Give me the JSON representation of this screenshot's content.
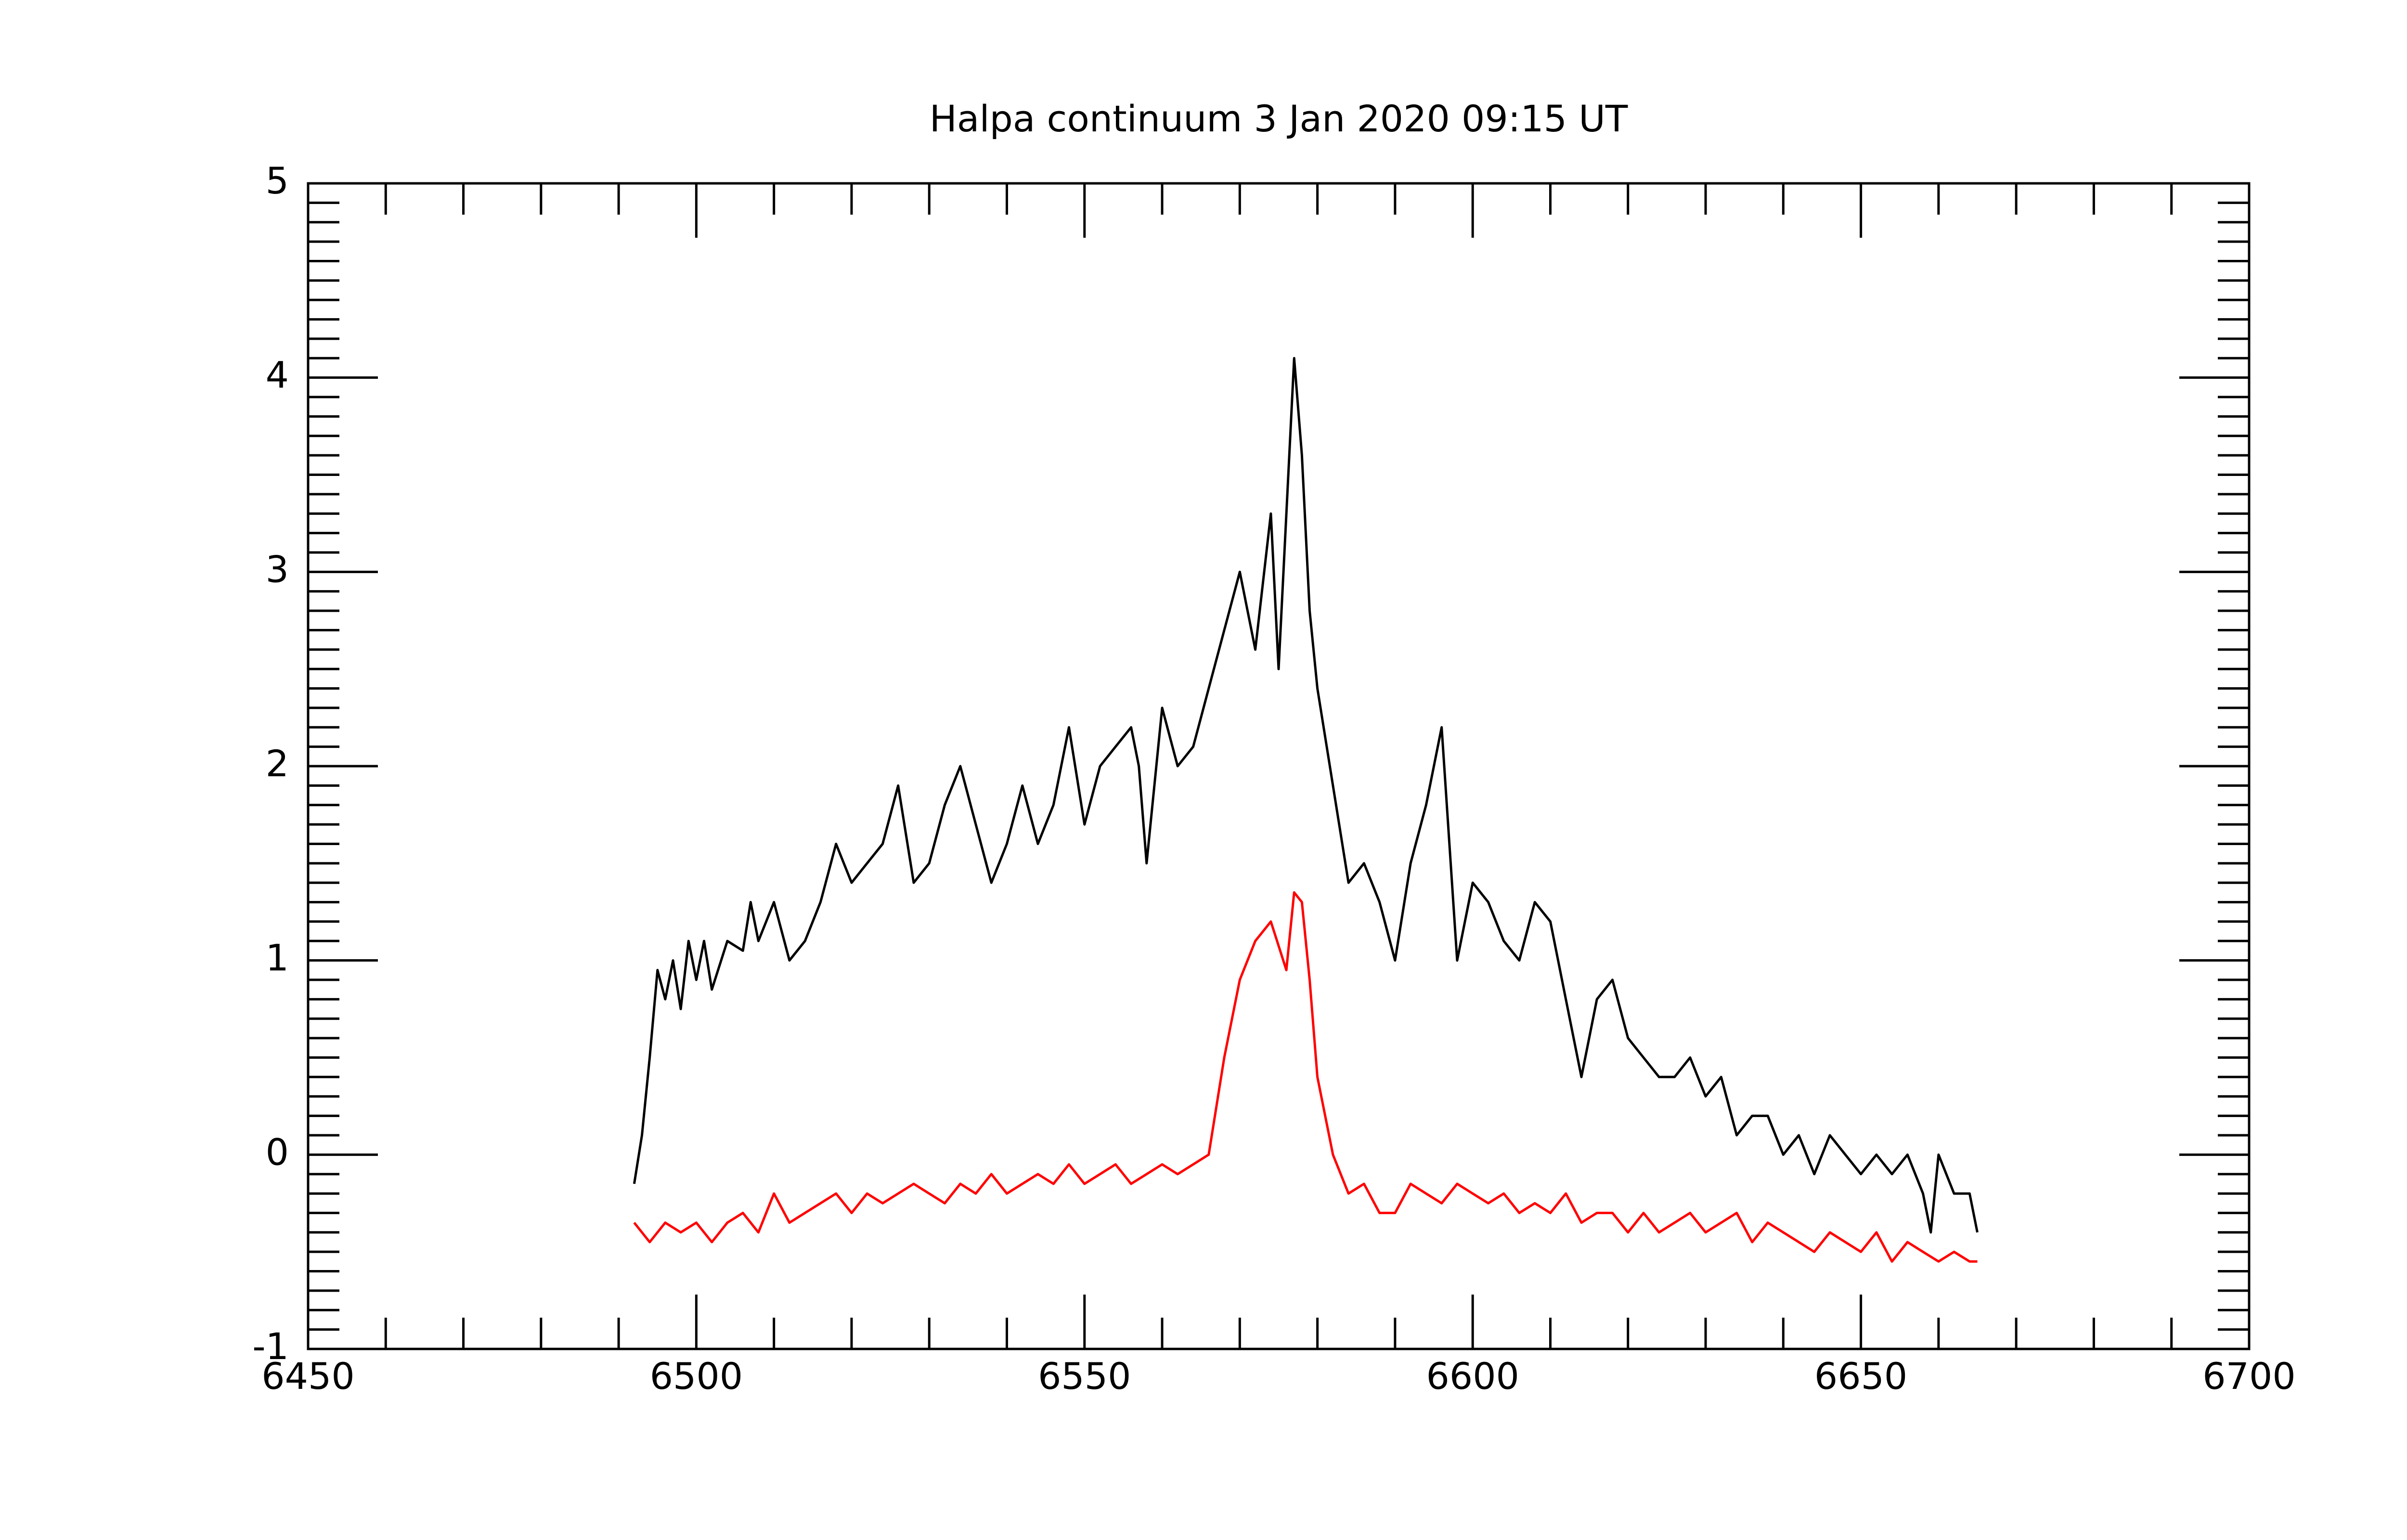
{
  "chart_data": {
    "type": "line",
    "title": "Halpa continuum 3 Jan 2020 09:15 UT",
    "xlim": [
      6450,
      6700
    ],
    "ylim": [
      -1,
      5
    ],
    "xticks": [
      6450,
      6500,
      6550,
      6600,
      6650,
      6700
    ],
    "yticks": [
      -1,
      0,
      1,
      2,
      3,
      4,
      5
    ],
    "xminorticks": [
      6460,
      6470,
      6480,
      6490,
      6510,
      6520,
      6530,
      6540,
      6560,
      6570,
      6580,
      6590,
      6610,
      6620,
      6630,
      6640,
      6660,
      6670,
      6680,
      6690
    ],
    "yminorticks": [
      -0.8,
      -0.6,
      -0.4,
      -0.2,
      0.2,
      0.4,
      0.6,
      0.8,
      1.2,
      1.4,
      1.6,
      1.8,
      2.2,
      2.4,
      2.6,
      2.8,
      3.2,
      3.4,
      3.6,
      3.8,
      4.2,
      4.4,
      4.6,
      4.8,
      -0.9,
      -0.7,
      -0.5,
      -0.3,
      -0.1,
      0.1,
      0.3,
      0.5,
      0.7,
      0.9,
      1.1,
      1.3,
      1.5,
      1.7,
      1.9,
      2.1,
      2.3,
      2.5,
      2.7,
      2.9,
      3.1,
      3.3,
      3.5,
      3.7,
      3.9,
      4.1,
      4.3,
      4.5,
      4.7,
      4.9
    ],
    "series": [
      {
        "color": "#000000",
        "x": [
          6492,
          6493,
          6494,
          6495,
          6496,
          6497,
          6498,
          6499,
          6500,
          6501,
          6502,
          6504,
          6506,
          6507,
          6508,
          6510,
          6512,
          6514,
          6516,
          6518,
          6520,
          6522,
          6524,
          6526,
          6528,
          6530,
          6532,
          6534,
          6536,
          6538,
          6540,
          6542,
          6544,
          6546,
          6548,
          6550,
          6552,
          6554,
          6556,
          6557,
          6558,
          6560,
          6562,
          6564,
          6566,
          6568,
          6570,
          6572,
          6574,
          6575,
          6577,
          6578,
          6579,
          6580,
          6582,
          6584,
          6586,
          6588,
          6590,
          6592,
          6594,
          6596,
          6598,
          6600,
          6602,
          6604,
          6606,
          6608,
          6610,
          6612,
          6614,
          6616,
          6618,
          6620,
          6622,
          6624,
          6626,
          6628,
          6630,
          6632,
          6634,
          6636,
          6638,
          6640,
          6642,
          6644,
          6646,
          6648,
          6650,
          6652,
          6654,
          6656,
          6658,
          6659,
          6660,
          6662,
          6664,
          6665
        ],
        "values": [
          -0.15,
          0.1,
          0.5,
          0.95,
          0.8,
          1.0,
          0.75,
          1.1,
          0.9,
          1.1,
          0.85,
          1.1,
          1.05,
          1.3,
          1.1,
          1.3,
          1.0,
          1.1,
          1.3,
          1.6,
          1.4,
          1.5,
          1.6,
          1.9,
          1.4,
          1.5,
          1.8,
          2.0,
          1.7,
          1.4,
          1.6,
          1.9,
          1.6,
          1.8,
          2.2,
          1.7,
          2.0,
          2.1,
          2.2,
          2.0,
          1.5,
          2.3,
          2.0,
          2.1,
          2.4,
          2.7,
          3.0,
          2.6,
          3.3,
          2.5,
          4.1,
          3.6,
          2.8,
          2.4,
          1.9,
          1.4,
          1.5,
          1.3,
          1.0,
          1.5,
          1.8,
          2.2,
          1.0,
          1.4,
          1.3,
          1.1,
          1.0,
          1.3,
          1.2,
          0.8,
          0.4,
          0.8,
          0.9,
          0.6,
          0.5,
          0.4,
          0.4,
          0.5,
          0.3,
          0.4,
          0.1,
          0.2,
          0.2,
          0.0,
          0.1,
          -0.1,
          0.1,
          0.0,
          -0.1,
          0.0,
          -0.1,
          0.0,
          -0.2,
          -0.4,
          0.0,
          -0.2,
          -0.2,
          -0.4
        ]
      },
      {
        "color": "#ff0000",
        "x": [
          6492,
          6494,
          6496,
          6498,
          6500,
          6502,
          6504,
          6506,
          6508,
          6510,
          6512,
          6514,
          6516,
          6518,
          6520,
          6522,
          6524,
          6526,
          6528,
          6530,
          6532,
          6534,
          6536,
          6538,
          6540,
          6542,
          6544,
          6546,
          6548,
          6550,
          6552,
          6554,
          6556,
          6558,
          6560,
          6562,
          6564,
          6566,
          6568,
          6570,
          6572,
          6574,
          6576,
          6577,
          6578,
          6579,
          6580,
          6582,
          6584,
          6586,
          6588,
          6590,
          6592,
          6594,
          6596,
          6598,
          6600,
          6602,
          6604,
          6606,
          6608,
          6610,
          6612,
          6614,
          6616,
          6618,
          6620,
          6622,
          6624,
          6626,
          6628,
          6630,
          6632,
          6634,
          6636,
          6638,
          6640,
          6642,
          6644,
          6646,
          6648,
          6650,
          6652,
          6654,
          6656,
          6658,
          6660,
          6662,
          6664,
          6665
        ],
        "values": [
          -0.35,
          -0.45,
          -0.35,
          -0.4,
          -0.35,
          -0.45,
          -0.35,
          -0.3,
          -0.4,
          -0.2,
          -0.35,
          -0.3,
          -0.25,
          -0.2,
          -0.3,
          -0.2,
          -0.25,
          -0.2,
          -0.15,
          -0.2,
          -0.25,
          -0.15,
          -0.2,
          -0.1,
          -0.2,
          -0.15,
          -0.1,
          -0.15,
          -0.05,
          -0.15,
          -0.1,
          -0.05,
          -0.15,
          -0.1,
          -0.05,
          -0.1,
          -0.05,
          0.0,
          0.5,
          0.9,
          1.1,
          1.2,
          0.95,
          1.35,
          1.3,
          0.9,
          0.4,
          0.0,
          -0.2,
          -0.15,
          -0.3,
          -0.3,
          -0.15,
          -0.2,
          -0.25,
          -0.15,
          -0.2,
          -0.25,
          -0.2,
          -0.3,
          -0.25,
          -0.3,
          -0.2,
          -0.35,
          -0.3,
          -0.3,
          -0.4,
          -0.3,
          -0.4,
          -0.35,
          -0.3,
          -0.4,
          -0.35,
          -0.3,
          -0.45,
          -0.35,
          -0.4,
          -0.45,
          -0.5,
          -0.4,
          -0.45,
          -0.5,
          -0.4,
          -0.55,
          -0.45,
          -0.5,
          -0.55,
          -0.5,
          -0.55,
          -0.55
        ]
      }
    ]
  }
}
